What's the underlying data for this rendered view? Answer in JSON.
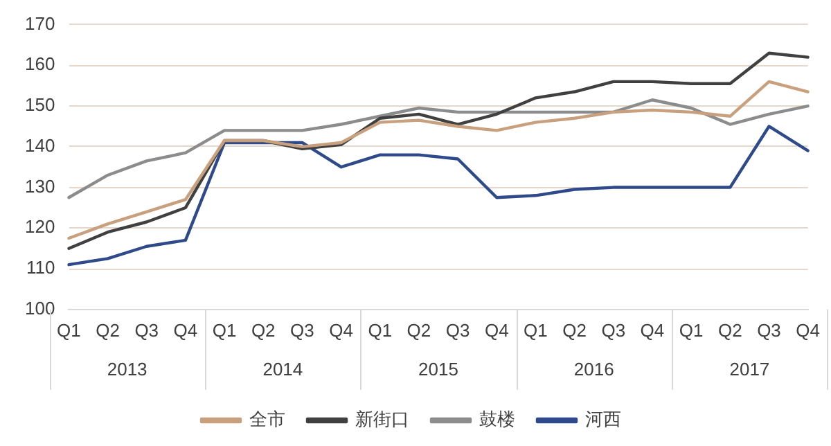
{
  "chart_data": {
    "type": "line",
    "categories": [
      "Q1",
      "Q2",
      "Q3",
      "Q4",
      "Q1",
      "Q2",
      "Q3",
      "Q4",
      "Q1",
      "Q2",
      "Q3",
      "Q4",
      "Q1",
      "Q2",
      "Q3",
      "Q4",
      "Q1",
      "Q2",
      "Q3",
      "Q4"
    ],
    "annotations": [
      "2013",
      "2014",
      "2015",
      "2016",
      "2017"
    ],
    "series": [
      {
        "name": "全市",
        "color": "#c8a07e",
        "values": [
          117.5,
          121,
          124,
          127,
          141.5,
          141.5,
          140,
          141,
          146,
          146.5,
          145,
          144,
          146,
          147,
          148.5,
          149,
          148.5,
          147.5,
          156,
          153.5
        ]
      },
      {
        "name": "新街口",
        "color": "#404040",
        "values": [
          115,
          119,
          121.5,
          125,
          141.5,
          141.5,
          139.5,
          140.5,
          147,
          148,
          145.5,
          148,
          152,
          153.5,
          156,
          156,
          155.5,
          155.5,
          163,
          162
        ]
      },
      {
        "name": "鼓楼",
        "color": "#8c8c8c",
        "values": [
          127.5,
          133,
          136.5,
          138.5,
          144,
          144,
          144,
          145.5,
          147.5,
          149.5,
          148.5,
          148.5,
          148.5,
          148.5,
          148.5,
          151.5,
          149.5,
          145.5,
          148,
          150
        ]
      },
      {
        "name": "河西",
        "color": "#2e4a8a",
        "values": [
          111,
          112.5,
          115.5,
          117,
          141,
          141,
          141,
          135,
          138,
          138,
          137,
          127.5,
          128,
          129.5,
          130,
          130,
          130,
          130,
          145,
          139
        ]
      }
    ],
    "ylim": [
      100,
      170
    ],
    "yticks": [
      100,
      110,
      120,
      130,
      140,
      150,
      160,
      170
    ],
    "grid": "y",
    "legend": "bottom",
    "marker": "none",
    "line_style": "solid"
  }
}
